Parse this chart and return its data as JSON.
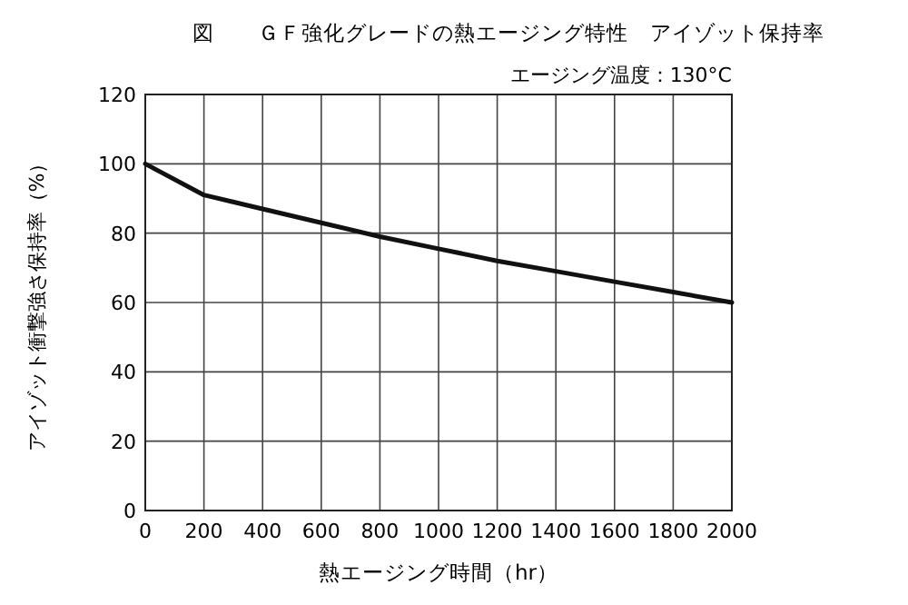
{
  "chart_data": {
    "type": "line",
    "title": "図　　ＧＦ強化グレードの熱エージング特性　アイゾット保持率",
    "annotations": [
      "エージング温度：130°C"
    ],
    "xlabel": "熱エージング時間（hr）",
    "ylabel": "アイゾット衝撃強さ保持率（%）",
    "x": [
      0,
      200,
      400,
      600,
      800,
      1000,
      1200,
      1400,
      1600,
      1800,
      2000
    ],
    "series": [
      {
        "color": "#111111",
        "values": [
          100,
          91,
          87,
          83,
          79,
          75.5,
          72,
          69,
          66,
          63,
          60
        ]
      }
    ],
    "xlim": [
      0,
      2000
    ],
    "ylim": [
      0,
      120
    ],
    "xticks": [
      0,
      200,
      400,
      600,
      800,
      1000,
      1200,
      1400,
      1600,
      1800,
      2000
    ],
    "yticks": [
      0,
      20,
      40,
      60,
      80,
      100,
      120
    ],
    "grid": true,
    "marker": "none",
    "line_style": "solid"
  }
}
